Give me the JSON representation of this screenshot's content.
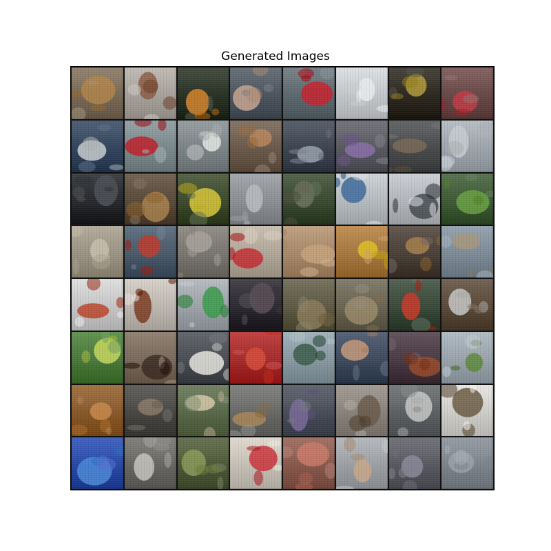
{
  "figure": {
    "title": "Generated Images"
  },
  "grid": {
    "rows": 8,
    "cols": 8,
    "tiles": [
      {
        "icon": "baskets-image",
        "bg": "#7a6a58",
        "accent": "#b0854a"
      },
      {
        "icon": "roof-image",
        "bg": "#a8a39c",
        "accent": "#8a5c45"
      },
      {
        "icon": "butterfly-orange-image",
        "bg": "#2a3326",
        "accent": "#d8862a"
      },
      {
        "icon": "man-portrait-image",
        "bg": "#4e5660",
        "accent": "#c9a690"
      },
      {
        "icon": "red-car-image",
        "bg": "#5e6a70",
        "accent": "#c8222e"
      },
      {
        "icon": "keyboard-image",
        "bg": "#c6c9cc",
        "accent": "#eaeced"
      },
      {
        "icon": "food-plate-image",
        "bg": "#2e2a22",
        "accent": "#b39c3c"
      },
      {
        "icon": "red-leaf-image",
        "bg": "#6a4a48",
        "accent": "#c33a45"
      },
      {
        "icon": "building-window-image",
        "bg": "#34465e",
        "accent": "#c9cfd0"
      },
      {
        "icon": "red-umbrella-image",
        "bg": "#7c8a8e",
        "accent": "#c0202a"
      },
      {
        "icon": "van-image",
        "bg": "#7e8588",
        "accent": "#e4e7e4"
      },
      {
        "icon": "barrels-image",
        "bg": "#6c5b4c",
        "accent": "#b8875a"
      },
      {
        "icon": "waterfront-image",
        "bg": "#3e4652",
        "accent": "#9aa2ad"
      },
      {
        "icon": "crowd-image",
        "bg": "#5a5a62",
        "accent": "#8a70a8"
      },
      {
        "icon": "table-image",
        "bg": "#4a4c4e",
        "accent": "#7a6a58"
      },
      {
        "icon": "water-image",
        "bg": "#9fa6ad",
        "accent": "#c7ccd1"
      },
      {
        "icon": "dark-window-image",
        "bg": "#26282c",
        "accent": "#4c5056"
      },
      {
        "icon": "terrier-dog-image",
        "bg": "#5a4a3a",
        "accent": "#a8814e"
      },
      {
        "icon": "yellow-flower-image",
        "bg": "#3c4a2c",
        "accent": "#d9c83c"
      },
      {
        "icon": "street-image",
        "bg": "#8c9094",
        "accent": "#b8bcc0"
      },
      {
        "icon": "group-photo-image",
        "bg": "#3a4a32",
        "accent": "#6a6a5a"
      },
      {
        "icon": "blue-rings-image",
        "bg": "#b7bcc0",
        "accent": "#3e6a9a"
      },
      {
        "icon": "tag-necklace-image",
        "bg": "#b4b8bd",
        "accent": "#44494e"
      },
      {
        "icon": "green-pepper-image",
        "bg": "#3e5a36",
        "accent": "#6aa044"
      },
      {
        "icon": "gravel-image",
        "bg": "#9c9484",
        "accent": "#c8bfae"
      },
      {
        "icon": "boat-image",
        "bg": "#4a5a6a",
        "accent": "#c0392b"
      },
      {
        "icon": "pebbles-image",
        "bg": "#7a7670",
        "accent": "#a8a29a"
      },
      {
        "icon": "red-toy-image",
        "bg": "#b2a89a",
        "accent": "#c42a30"
      },
      {
        "icon": "teddy-bear-image",
        "bg": "#a88a6a",
        "accent": "#c8a27a"
      },
      {
        "icon": "banana-image",
        "bg": "#a8783e",
        "accent": "#e0c020"
      },
      {
        "icon": "truck-image",
        "bg": "#4a4038",
        "accent": "#a8804a"
      },
      {
        "icon": "arch-monument-image",
        "bg": "#7e8c98",
        "accent": "#a8967c"
      },
      {
        "icon": "pizza-image",
        "bg": "#c8c8c8",
        "accent": "#b8442a"
      },
      {
        "icon": "cockroach-image",
        "bg": "#bfb9b2",
        "accent": "#7a3a22"
      },
      {
        "icon": "green-sign-image",
        "bg": "#9ea4aa",
        "accent": "#3a9a4a"
      },
      {
        "icon": "dark-scene-image",
        "bg": "#2c2a30",
        "accent": "#5a4e56"
      },
      {
        "icon": "branches-image",
        "bg": "#5e5a44",
        "accent": "#8a7a5a"
      },
      {
        "icon": "boots-image",
        "bg": "#6a6454",
        "accent": "#9a8a6a"
      },
      {
        "icon": "red-fish-image",
        "bg": "#3a4a3a",
        "accent": "#c83a2a"
      },
      {
        "icon": "hands-objects-image",
        "bg": "#5a4a3a",
        "accent": "#c8c8c8"
      },
      {
        "icon": "butterfly-green-image",
        "bg": "#4a7a3a",
        "accent": "#c8d85a"
      },
      {
        "icon": "woman-image",
        "bg": "#7a6a5c",
        "accent": "#3a2a22"
      },
      {
        "icon": "ambulance-image",
        "bg": "#4a4e54",
        "accent": "#e8e8e0"
      },
      {
        "icon": "red-drum-image",
        "bg": "#a82a2a",
        "accent": "#d84a3a"
      },
      {
        "icon": "dial-image",
        "bg": "#8a9aa2",
        "accent": "#3a5a4a"
      },
      {
        "icon": "sunset-sea-image",
        "bg": "#3e4a5e",
        "accent": "#c89a7a"
      },
      {
        "icon": "orangutan-image",
        "bg": "#4a3a44",
        "accent": "#9a4a2a"
      },
      {
        "icon": "spider-image",
        "bg": "#9aa4ac",
        "accent": "#5a8a3a"
      },
      {
        "icon": "bread-image",
        "bg": "#8a5a2a",
        "accent": "#c88a4a"
      },
      {
        "icon": "shadow-figure-image",
        "bg": "#4a4844",
        "accent": "#8a7a6a"
      },
      {
        "icon": "puppy-image",
        "bg": "#5a6a4a",
        "accent": "#d8c8a8"
      },
      {
        "icon": "lion-image",
        "bg": "#6a6a68",
        "accent": "#a8885a"
      },
      {
        "icon": "purple-flowers-image",
        "bg": "#4a4e5a",
        "accent": "#7a6a9a"
      },
      {
        "icon": "sleeping-cat-image",
        "bg": "#8a847c",
        "accent": "#6a5a4a"
      },
      {
        "icon": "grey-cat-image",
        "bg": "#5e6264",
        "accent": "#c8c8c8"
      },
      {
        "icon": "basket-image",
        "bg": "#d0cfcb",
        "accent": "#6a5a42"
      },
      {
        "icon": "blue-plate-image",
        "bg": "#2a4aa8",
        "accent": "#4a8ad8"
      },
      {
        "icon": "white-vase-image",
        "bg": "#6a6864",
        "accent": "#c8c6c0"
      },
      {
        "icon": "grass-image",
        "bg": "#4e5a3a",
        "accent": "#8a9a5a"
      },
      {
        "icon": "pills-image",
        "bg": "#c8c2b8",
        "accent": "#c8323a"
      },
      {
        "icon": "blurry-red-image",
        "bg": "#8a5a4e",
        "accent": "#c87a6a"
      },
      {
        "icon": "skier-image",
        "bg": "#9ea2a6",
        "accent": "#c8a88a"
      },
      {
        "icon": "market-people-image",
        "bg": "#5a5a62",
        "accent": "#8a8a9a"
      },
      {
        "icon": "calm-sea-image",
        "bg": "#7e858d",
        "accent": "#9aa2ab"
      }
    ]
  }
}
